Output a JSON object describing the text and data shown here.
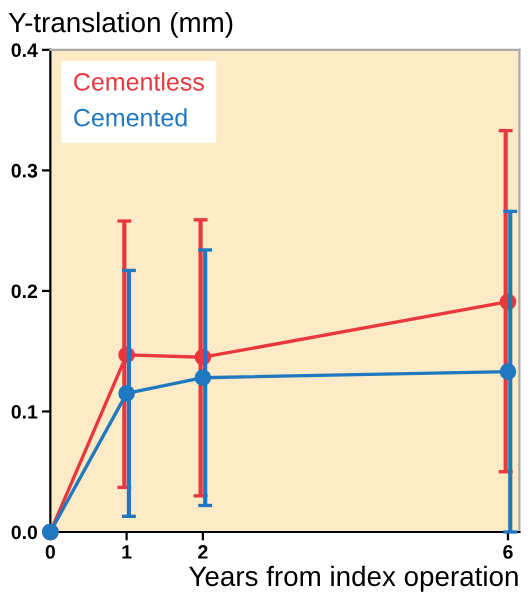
{
  "chart_data": {
    "type": "line",
    "ylabel": "Y-translation (mm)",
    "xlabel": "Years from index operation",
    "x": [
      0,
      1,
      2,
      6
    ],
    "xlim": [
      0,
      6.15
    ],
    "xticks": [
      0,
      1,
      2,
      6
    ],
    "ylim": [
      0,
      0.4
    ],
    "yticks": [
      {
        "value": 0,
        "label": "0.0"
      },
      0.1,
      0.2,
      0.3,
      0.4
    ],
    "series": [
      {
        "name": "Cementless",
        "color": "#e8383d",
        "values": [
          0,
          0.147,
          0.145,
          0.191
        ],
        "errors": [
          null,
          [
            0.037,
            0.258
          ],
          [
            0.03,
            0.259
          ],
          [
            0.05,
            0.333
          ]
        ]
      },
      {
        "name": "Cemented",
        "color": "#1f78c0",
        "values": [
          0,
          0.115,
          0.128,
          0.133
        ],
        "errors": [
          null,
          [
            0.013,
            0.217
          ],
          [
            0.022,
            0.234
          ],
          [
            0.0,
            0.266
          ]
        ]
      }
    ],
    "marker": "circle",
    "line_style": "solid",
    "legend": "top left",
    "grid": false
  }
}
